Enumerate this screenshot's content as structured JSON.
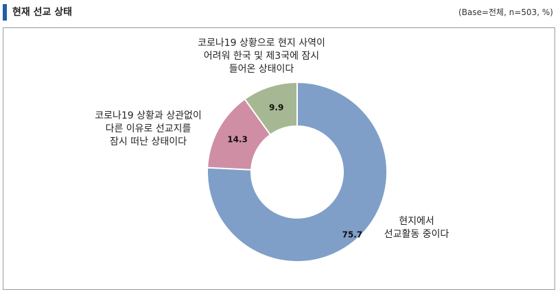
{
  "header": {
    "title": "현재 선교 상태",
    "base_note": "(Base=전체,  n=503,  %)"
  },
  "colors": {
    "accent_bar": "#1f5fa8",
    "slice_1": "#7f9fc8",
    "slice_2": "#d08ea4",
    "slice_3": "#a6b893"
  },
  "chart_data": {
    "type": "pie",
    "donut": true,
    "categories": [
      "현지에서\n선교활동 중이다",
      "코로나19 상황과 상관없이\n다른 이유로 선교지를\n잠시 떠난 상태이다",
      "코로나19 상황으로 현지 사역이\n어려워 한국 및 제3국에 잠시\n들어온 상태이다"
    ],
    "values": [
      75.7,
      14.3,
      9.9
    ],
    "value_labels": [
      "75.7",
      "14.3",
      "9.9"
    ],
    "title": "",
    "legend": "none"
  }
}
